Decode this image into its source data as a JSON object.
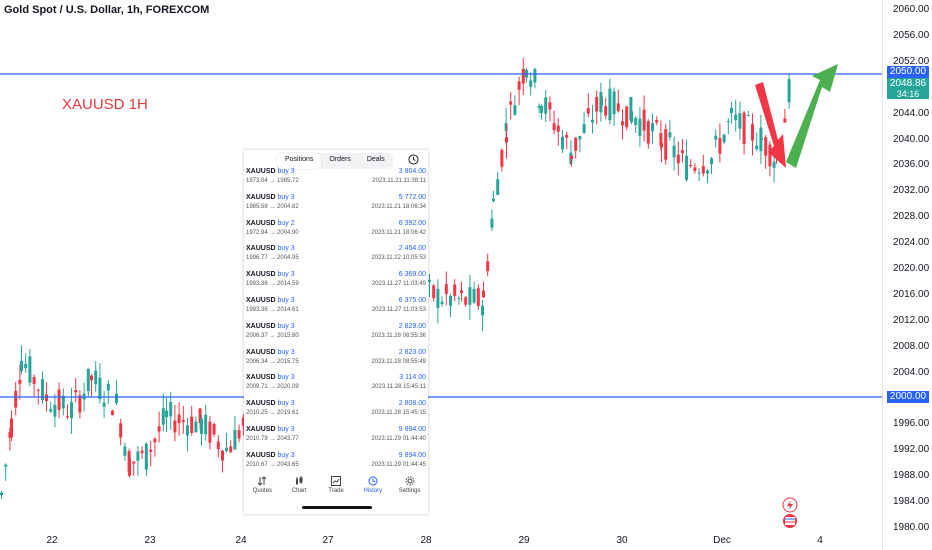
{
  "header": {
    "title": "Gold Spot / U.S. Dollar, 1h, FOREXCOM"
  },
  "symbol_label": "XAUUSD 1H",
  "y_axis": {
    "ticks": [
      "2060.00",
      "2056.00",
      "2052.00",
      "2048.00",
      "2044.00",
      "2040.00",
      "2036.00",
      "2032.00",
      "2028.00",
      "2024.00",
      "2020.00",
      "2016.00",
      "2012.00",
      "2008.00",
      "2004.00",
      "2000.00",
      "1996.00",
      "1992.00",
      "1988.00",
      "1984.00",
      "1980.00"
    ],
    "level_2050": "2050.00",
    "current_price": "2048.86",
    "countdown": "34:16",
    "level_2000": "2000.00"
  },
  "x_axis": {
    "ticks": [
      "22",
      "23",
      "24",
      "27",
      "28",
      "29",
      "30",
      "Dec",
      "4"
    ]
  },
  "colors": {
    "up": "#26a69a",
    "down": "#f23645",
    "line": "#2962ff",
    "arrow_up": "#4caf50",
    "arrow_down": "#f23645"
  },
  "panel": {
    "tabs": [
      {
        "label": "Positions"
      },
      {
        "label": "Orders"
      },
      {
        "label": "Deals"
      }
    ],
    "deals": [
      {
        "symbol": "XAUUSD",
        "direction": "buy 3",
        "profit": "3 804.00",
        "prices": "1973.04 → 1985.72",
        "time": "2023.11.21 11:38:11"
      },
      {
        "symbol": "XAUUSD",
        "direction": "buy 3",
        "profit": "5 772.00",
        "prices": "1985.58 → 2004.82",
        "time": "2023.11.21 18:06:34"
      },
      {
        "symbol": "XAUUSD",
        "direction": "buy 2",
        "profit": "6 392.00",
        "prices": "1972.94 → 2004.90",
        "time": "2023.11.21 18:06:42"
      },
      {
        "symbol": "XAUUSD",
        "direction": "buy 3",
        "profit": "2 454.00",
        "prices": "1996.77 → 2004.95",
        "time": "2023.11.22 10:05:53"
      },
      {
        "symbol": "XAUUSD",
        "direction": "buy 3",
        "profit": "6 369.00",
        "prices": "1993.36 → 2014.59",
        "time": "2023.11.27 11:03:49"
      },
      {
        "symbol": "XAUUSD",
        "direction": "buy 3",
        "profit": "6 375.00",
        "prices": "1993.36 → 2014.61",
        "time": "2023.11.27 11:03:53"
      },
      {
        "symbol": "XAUUSD",
        "direction": "buy 3",
        "profit": "2 829.00",
        "prices": "2006.37 → 2015.80",
        "time": "2023.11.28 08:55:36"
      },
      {
        "symbol": "XAUUSD",
        "direction": "buy 3",
        "profit": "2 823.00",
        "prices": "2006.34 → 2015.75",
        "time": "2023.11.28 08:55:49"
      },
      {
        "symbol": "XAUUSD",
        "direction": "buy 3",
        "profit": "3 114.00",
        "prices": "2009.71 → 2020.09",
        "time": "2023.11.28 15:45:11"
      },
      {
        "symbol": "XAUUSD",
        "direction": "buy 3",
        "profit": "2 808.00",
        "prices": "2010.25 → 2019.61",
        "time": "2023.11.28 15:45:15"
      },
      {
        "symbol": "XAUUSD",
        "direction": "buy 3",
        "profit": "9 894.00",
        "prices": "2010.79 → 2043.77",
        "time": "2023.11.29 01:44:40"
      },
      {
        "symbol": "XAUUSD",
        "direction": "buy 3",
        "profit": "9 894.00",
        "prices": "2010.67 → 2043.65",
        "time": "2023.11.29 01:44:45"
      }
    ],
    "nav": [
      {
        "label": "Quotes",
        "icon": "arrows-icon"
      },
      {
        "label": "Chart",
        "icon": "candles-icon"
      },
      {
        "label": "Trade",
        "icon": "trend-icon"
      },
      {
        "label": "History",
        "icon": "history-icon"
      },
      {
        "label": "Settings",
        "icon": "gear-icon"
      }
    ]
  }
}
